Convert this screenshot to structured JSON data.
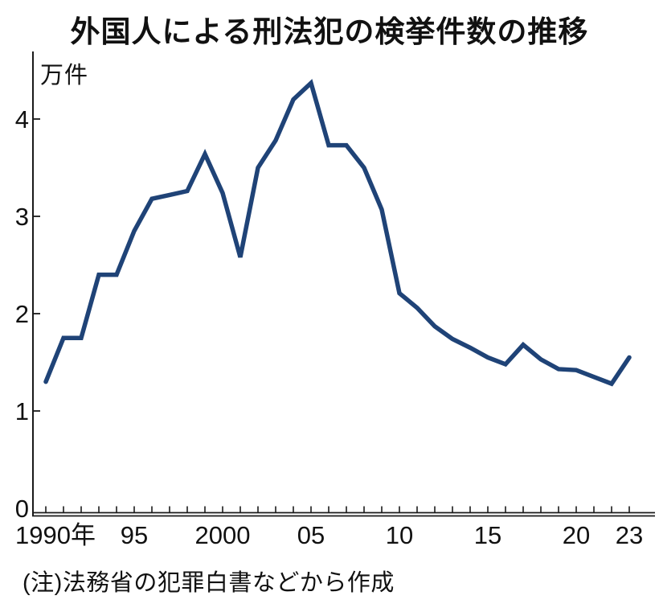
{
  "chart_data": {
    "type": "line",
    "title": "外国人による刑法犯の検挙件数の推移",
    "unit_label": "万件",
    "note": "(注)法務省の犯罪白書などから作成",
    "x": [
      1990,
      1991,
      1992,
      1993,
      1994,
      1995,
      1996,
      1997,
      1998,
      1999,
      2000,
      2001,
      2002,
      2003,
      2004,
      2005,
      2006,
      2007,
      2008,
      2009,
      2010,
      2011,
      2012,
      2013,
      2014,
      2015,
      2016,
      2017,
      2018,
      2019,
      2020,
      2021,
      2022,
      2023
    ],
    "values": [
      1.3,
      1.75,
      1.75,
      2.4,
      2.4,
      2.85,
      3.18,
      3.22,
      3.26,
      3.64,
      3.24,
      2.58,
      3.5,
      3.78,
      4.2,
      4.37,
      3.73,
      3.73,
      3.5,
      3.07,
      2.21,
      2.06,
      1.87,
      1.74,
      1.65,
      1.55,
      1.48,
      1.68,
      1.53,
      1.43,
      1.42,
      1.35,
      1.28,
      1.55
    ],
    "x_tick_labels": [
      {
        "year": 1990,
        "label": "1990年"
      },
      {
        "year": 1995,
        "label": "95"
      },
      {
        "year": 2000,
        "label": "2000"
      },
      {
        "year": 2005,
        "label": "05"
      },
      {
        "year": 2010,
        "label": "10"
      },
      {
        "year": 2015,
        "label": "15"
      },
      {
        "year": 2020,
        "label": "20"
      },
      {
        "year": 2023,
        "label": "23"
      }
    ],
    "y_ticks": [
      0,
      1,
      2,
      3,
      4
    ],
    "ylim": [
      0,
      4.7
    ],
    "xlim": [
      1990,
      2023
    ],
    "grid": false,
    "legend": "none",
    "line_color": "#1f4377",
    "axis_color": "#1a1a1a",
    "text_color": "#111111"
  }
}
